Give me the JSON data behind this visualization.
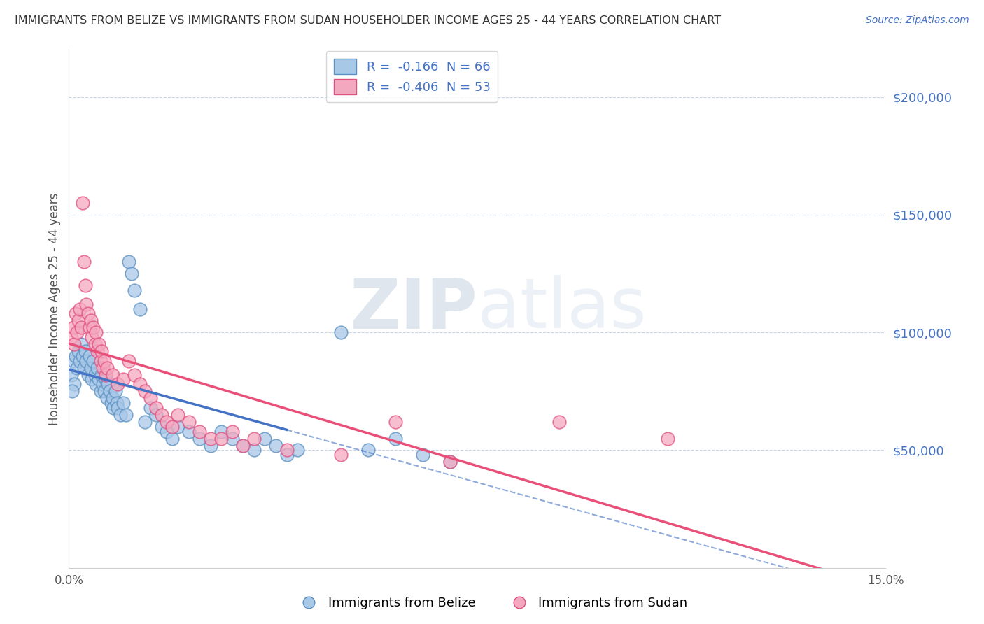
{
  "title": "IMMIGRANTS FROM BELIZE VS IMMIGRANTS FROM SUDAN HOUSEHOLDER INCOME AGES 25 - 44 YEARS CORRELATION CHART",
  "source": "Source: ZipAtlas.com",
  "ylabel": "Householder Income Ages 25 - 44 years",
  "xlim": [
    0.0,
    15.0
  ],
  "ylim": [
    0,
    220000
  ],
  "yticks": [
    50000,
    100000,
    150000,
    200000
  ],
  "ytick_labels": [
    "$50,000",
    "$100,000",
    "$150,000",
    "$200,000"
  ],
  "belize_color": "#a8c8e8",
  "sudan_color": "#f4a8bf",
  "belize_edge_color": "#5a8fc0",
  "sudan_edge_color": "#e05080",
  "belize_line_color": "#4472c4",
  "sudan_line_color": "#e8507a",
  "belize_dash_color": "#8ab0d8",
  "legend_r_belize": "R =  -0.166  N = 66",
  "legend_r_sudan": "R =  -0.406  N = 53",
  "legend_label_belize": "Immigrants from Belize",
  "legend_label_sudan": "Immigrants from Sudan",
  "watermark_zip": "ZIP",
  "watermark_atlas": "atlas",
  "background_color": "#ffffff",
  "grid_color": "#c8d4e8",
  "title_color": "#333333",
  "axis_label_color": "#4472c4",
  "belize_scatter": [
    [
      0.05,
      82000
    ],
    [
      0.08,
      88000
    ],
    [
      0.1,
      78000
    ],
    [
      0.12,
      90000
    ],
    [
      0.15,
      85000
    ],
    [
      0.18,
      92000
    ],
    [
      0.2,
      88000
    ],
    [
      0.22,
      95000
    ],
    [
      0.25,
      90000
    ],
    [
      0.28,
      85000
    ],
    [
      0.3,
      92000
    ],
    [
      0.32,
      88000
    ],
    [
      0.35,
      82000
    ],
    [
      0.38,
      90000
    ],
    [
      0.4,
      85000
    ],
    [
      0.42,
      80000
    ],
    [
      0.45,
      88000
    ],
    [
      0.48,
      82000
    ],
    [
      0.5,
      78000
    ],
    [
      0.52,
      85000
    ],
    [
      0.55,
      80000
    ],
    [
      0.58,
      75000
    ],
    [
      0.6,
      82000
    ],
    [
      0.62,
      78000
    ],
    [
      0.65,
      75000
    ],
    [
      0.68,
      80000
    ],
    [
      0.7,
      72000
    ],
    [
      0.72,
      78000
    ],
    [
      0.75,
      75000
    ],
    [
      0.78,
      70000
    ],
    [
      0.8,
      72000
    ],
    [
      0.82,
      68000
    ],
    [
      0.85,
      75000
    ],
    [
      0.88,
      70000
    ],
    [
      0.9,
      68000
    ],
    [
      0.95,
      65000
    ],
    [
      1.0,
      70000
    ],
    [
      1.05,
      65000
    ],
    [
      1.1,
      130000
    ],
    [
      1.15,
      125000
    ],
    [
      1.2,
      118000
    ],
    [
      1.3,
      110000
    ],
    [
      1.4,
      62000
    ],
    [
      1.5,
      68000
    ],
    [
      1.6,
      65000
    ],
    [
      1.7,
      60000
    ],
    [
      1.8,
      58000
    ],
    [
      1.9,
      55000
    ],
    [
      2.0,
      60000
    ],
    [
      2.2,
      58000
    ],
    [
      2.4,
      55000
    ],
    [
      2.6,
      52000
    ],
    [
      2.8,
      58000
    ],
    [
      3.0,
      55000
    ],
    [
      3.2,
      52000
    ],
    [
      3.4,
      50000
    ],
    [
      3.6,
      55000
    ],
    [
      3.8,
      52000
    ],
    [
      4.0,
      48000
    ],
    [
      4.2,
      50000
    ],
    [
      5.0,
      100000
    ],
    [
      5.5,
      50000
    ],
    [
      6.0,
      55000
    ],
    [
      6.5,
      48000
    ],
    [
      7.0,
      45000
    ],
    [
      0.06,
      75000
    ]
  ],
  "sudan_scatter": [
    [
      0.05,
      98000
    ],
    [
      0.08,
      102000
    ],
    [
      0.1,
      95000
    ],
    [
      0.12,
      108000
    ],
    [
      0.15,
      100000
    ],
    [
      0.18,
      105000
    ],
    [
      0.2,
      110000
    ],
    [
      0.22,
      102000
    ],
    [
      0.25,
      155000
    ],
    [
      0.28,
      130000
    ],
    [
      0.3,
      120000
    ],
    [
      0.32,
      112000
    ],
    [
      0.35,
      108000
    ],
    [
      0.38,
      102000
    ],
    [
      0.4,
      105000
    ],
    [
      0.42,
      98000
    ],
    [
      0.45,
      102000
    ],
    [
      0.48,
      95000
    ],
    [
      0.5,
      100000
    ],
    [
      0.52,
      92000
    ],
    [
      0.55,
      95000
    ],
    [
      0.58,
      88000
    ],
    [
      0.6,
      92000
    ],
    [
      0.62,
      85000
    ],
    [
      0.65,
      88000
    ],
    [
      0.68,
      82000
    ],
    [
      0.7,
      85000
    ],
    [
      0.8,
      82000
    ],
    [
      0.9,
      78000
    ],
    [
      1.0,
      80000
    ],
    [
      1.1,
      88000
    ],
    [
      1.2,
      82000
    ],
    [
      1.3,
      78000
    ],
    [
      1.4,
      75000
    ],
    [
      1.5,
      72000
    ],
    [
      1.6,
      68000
    ],
    [
      1.7,
      65000
    ],
    [
      1.8,
      62000
    ],
    [
      2.0,
      65000
    ],
    [
      2.2,
      62000
    ],
    [
      2.4,
      58000
    ],
    [
      2.6,
      55000
    ],
    [
      3.0,
      58000
    ],
    [
      3.2,
      52000
    ],
    [
      4.0,
      50000
    ],
    [
      5.0,
      48000
    ],
    [
      6.0,
      62000
    ],
    [
      7.0,
      45000
    ],
    [
      9.0,
      62000
    ],
    [
      11.0,
      55000
    ],
    [
      1.9,
      60000
    ],
    [
      2.8,
      55000
    ],
    [
      3.4,
      55000
    ]
  ],
  "belize_line_xrange": [
    0.0,
    4.0
  ],
  "belize_dash_xrange": [
    4.0,
    15.0
  ],
  "sudan_line_xrange": [
    0.0,
    15.0
  ],
  "belize_slope": -5500,
  "belize_intercept": 91000,
  "sudan_slope": -5200,
  "sudan_intercept": 103000
}
